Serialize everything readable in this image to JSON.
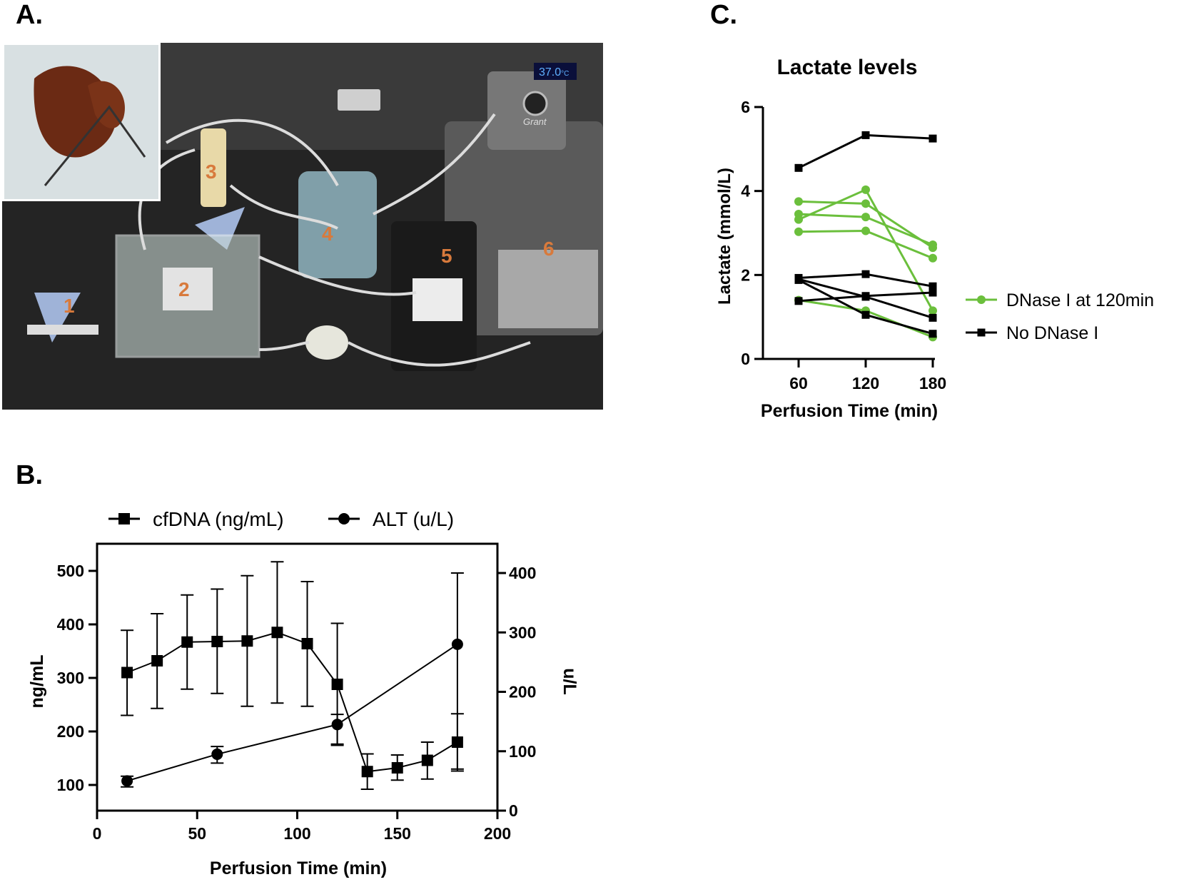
{
  "panels": {
    "a": "A.",
    "b": "B.",
    "c": "C."
  },
  "photo": {
    "numbers": [
      "1",
      "2",
      "3",
      "4",
      "5",
      "6"
    ],
    "display": "37.0",
    "display_unit": "°C",
    "brand": "Grant"
  },
  "colors": {
    "green": "#6bbf3c",
    "black": "#000000"
  },
  "chart_data": [
    {
      "type": "line",
      "panel": "C.",
      "title": "Lactate levels",
      "xlabel": "Perfusion Time (min)",
      "ylabel": "Lactate (mmol/L)",
      "x": [
        60,
        120,
        180
      ],
      "x_ticks": [
        60,
        120,
        180
      ],
      "y_ticks": [
        0,
        2,
        4,
        6
      ],
      "ylim": [
        0,
        6
      ],
      "legend": [
        {
          "label": "DNase I at 120min",
          "marker": "circle",
          "color": "#6bbf3c"
        },
        {
          "label": "No DNase I",
          "marker": "square",
          "color": "#000000"
        }
      ],
      "series": [
        {
          "group": "DNase I at 120min",
          "values": [
            3.75,
            3.7,
            2.65
          ]
        },
        {
          "group": "DNase I at 120min",
          "values": [
            3.45,
            3.38,
            2.72
          ]
        },
        {
          "group": "DNase I at 120min",
          "values": [
            3.32,
            4.03,
            1.15
          ]
        },
        {
          "group": "DNase I at 120min",
          "values": [
            3.03,
            3.05,
            2.4
          ]
        },
        {
          "group": "DNase I at 120min",
          "values": [
            1.4,
            1.15,
            0.52
          ]
        },
        {
          "group": "No DNase I",
          "values": [
            4.55,
            5.33,
            5.25
          ]
        },
        {
          "group": "No DNase I",
          "values": [
            1.93,
            2.02,
            1.73
          ]
        },
        {
          "group": "No DNase I",
          "values": [
            1.9,
            1.48,
            0.98
          ]
        },
        {
          "group": "No DNase I",
          "values": [
            1.88,
            1.05,
            0.6
          ]
        },
        {
          "group": "No DNase I",
          "values": [
            1.38,
            1.5,
            1.58
          ]
        }
      ]
    },
    {
      "type": "line",
      "panel": "B.",
      "xlabel": "Perfusion Time (min)",
      "ylabel": "ng/mL",
      "y2label": "u/L",
      "xlim": [
        0,
        200
      ],
      "ylim": [
        50,
        520
      ],
      "y2lim": [
        0,
        420
      ],
      "x_ticks": [
        0,
        50,
        100,
        150,
        200
      ],
      "y_ticks": [
        100,
        200,
        300,
        400,
        500
      ],
      "y2_ticks": [
        0,
        100,
        200,
        300,
        400
      ],
      "legend": [
        {
          "label": "cfDNA (ng/mL)",
          "marker": "square"
        },
        {
          "label": "ALT (u/L)",
          "marker": "circle"
        }
      ],
      "series": [
        {
          "name": "cfDNA (ng/mL)",
          "axis": "left",
          "marker": "square",
          "x": [
            15,
            30,
            45,
            60,
            75,
            90,
            105,
            120,
            135,
            150,
            165,
            180
          ],
          "y": [
            310,
            332,
            367,
            368,
            369,
            385,
            364,
            288,
            125,
            132,
            146,
            180
          ],
          "err_low": [
            230,
            243,
            279,
            271,
            247,
            253,
            247,
            174,
            92,
            109,
            111,
            126
          ],
          "err_high": [
            389,
            420,
            455,
            466,
            491,
            517,
            480,
            402,
            158,
            156,
            180,
            233
          ]
        },
        {
          "name": "ALT (u/L)",
          "axis": "right",
          "marker": "circle",
          "x": [
            15,
            60,
            120,
            180
          ],
          "y": [
            50,
            95,
            145,
            280
          ],
          "err_low": [
            40,
            80,
            112,
            70
          ],
          "err_high": [
            58,
            108,
            162,
            400
          ]
        }
      ]
    }
  ]
}
